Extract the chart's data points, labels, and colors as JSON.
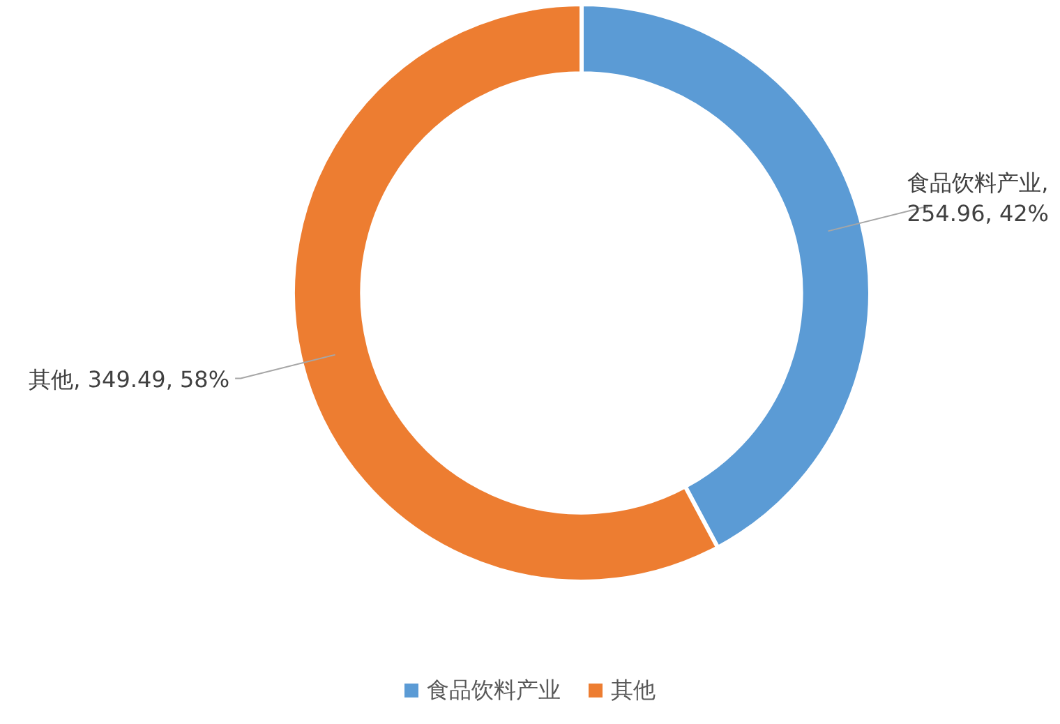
{
  "chart_data": {
    "type": "donut",
    "categories": [
      "食品饮料产业",
      "其他"
    ],
    "values": [
      254.96,
      349.49
    ],
    "colors": [
      "#5b9bd5",
      "#ed7d31"
    ],
    "value_labels": [
      "食品饮料产业, 254.96, 42%",
      "其他, 349.49, 58%"
    ],
    "legend": "bottom"
  }
}
